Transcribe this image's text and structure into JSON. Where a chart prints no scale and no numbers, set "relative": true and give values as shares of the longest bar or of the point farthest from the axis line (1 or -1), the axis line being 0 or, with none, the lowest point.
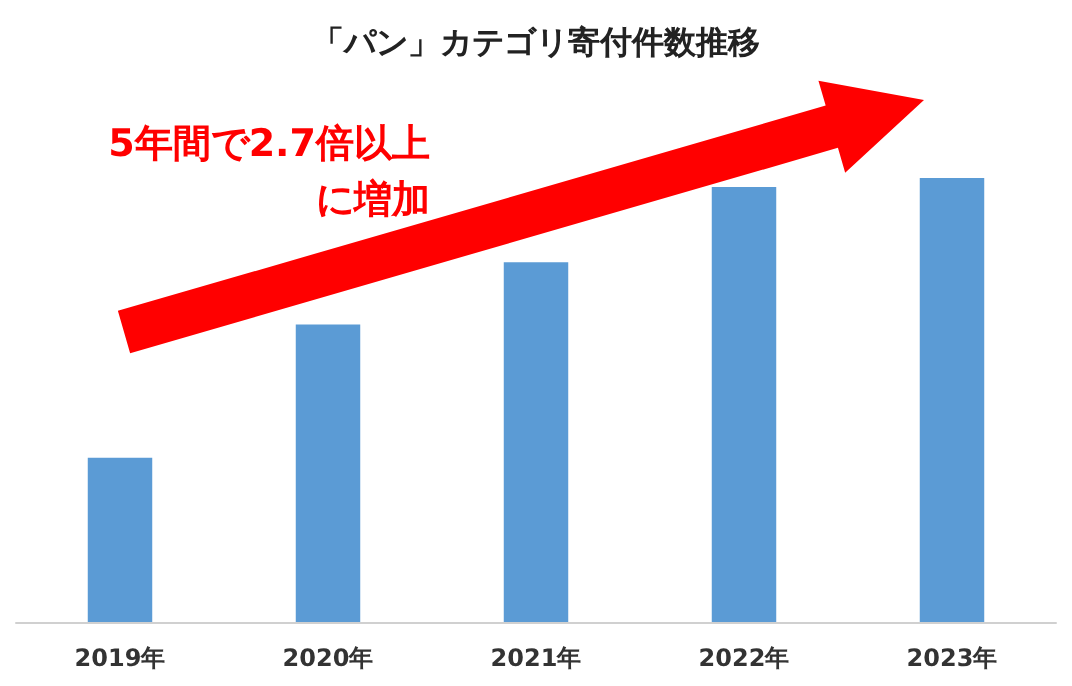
{
  "chart_data": {
    "type": "bar",
    "title": "「パン」カテゴリ寄付件数推移",
    "categories": [
      "2019年",
      "2020年",
      "2021年",
      "2022年",
      "2023年"
    ],
    "values": [
      0.37,
      0.67,
      0.81,
      0.98,
      1
    ],
    "color": "#5b9bd5",
    "relative": true,
    "grid": false,
    "annotations": [
      "5年間で2.7倍以上",
      "に増加"
    ]
  }
}
